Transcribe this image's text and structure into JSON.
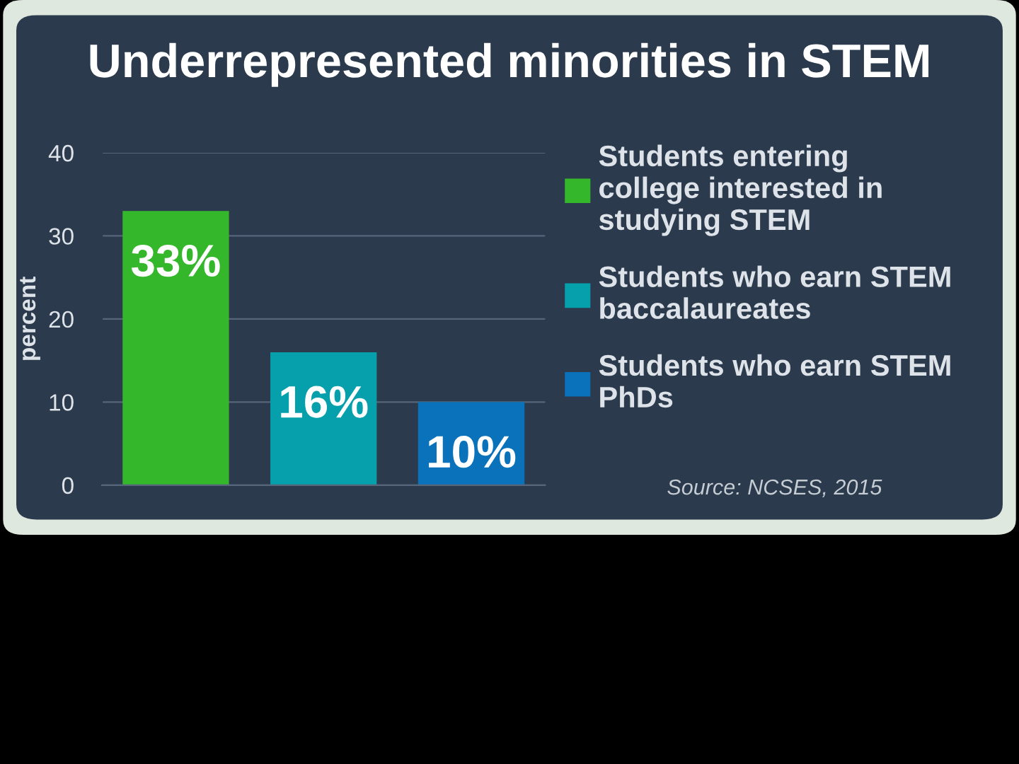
{
  "chart_data": {
    "type": "bar",
    "title": "Underrepresented minorities in STEM",
    "ylabel": "percent",
    "categories": [
      null,
      null,
      null
    ],
    "series": [
      {
        "name": "Students entering college interested in studying STEM",
        "color": "#35b72c",
        "values": [
          33,
          null,
          null
        ],
        "value_labels": [
          "33%",
          null,
          null
        ]
      },
      {
        "name": "Students who earn STEM baccalaureates",
        "color": "#05a0ab",
        "values": [
          null,
          16,
          null
        ],
        "value_labels": [
          null,
          "16%",
          null
        ]
      },
      {
        "name": "Students who earn STEM PhDs",
        "color": "#0a72ba",
        "values": [
          null,
          null,
          10
        ],
        "value_labels": [
          null,
          null,
          "10%"
        ]
      }
    ],
    "ylim": [
      0,
      40
    ],
    "yticks": [
      0,
      10,
      20,
      30,
      40
    ],
    "grid": "y",
    "legend": "right",
    "annotations": [
      "Source: NCSES, 2015"
    ]
  }
}
